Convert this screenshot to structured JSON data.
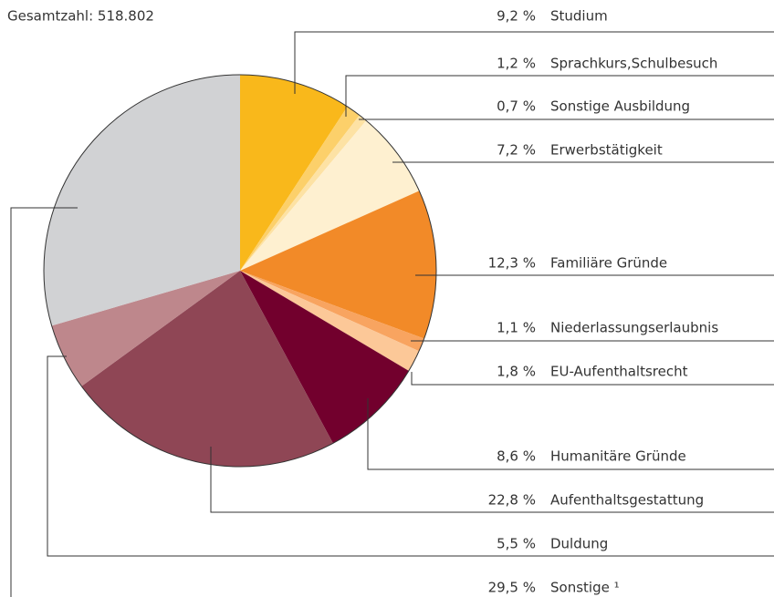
{
  "chart_data": {
    "type": "pie",
    "title": "Gesamtzahl: 518.802",
    "categories": [
      "Studium",
      "Sprachkurs,Schulbesuch",
      "Sonstige Ausbildung",
      "Erwerbstätigkeit",
      "Familiäre Gründe",
      "Niederlassungserlaubnis",
      "EU-Aufenthaltsrecht",
      "Humanitäre Gründe",
      "Aufenthaltsgestattung",
      "Duldung",
      "Sonstige ¹"
    ],
    "values": [
      9.2,
      1.2,
      0.7,
      7.2,
      12.3,
      1.1,
      1.8,
      8.6,
      22.8,
      5.5,
      29.5
    ],
    "value_labels": [
      "9,2 %",
      "1,2 %",
      "0,7 %",
      "7,2 %",
      "12,3 %",
      "1,1 %",
      "1,8 %",
      "8,6 %",
      "22,8 %",
      "5,5 %",
      "29,5 %"
    ],
    "colors": [
      "#f9b81b",
      "#fcd06a",
      "#fde2a4",
      "#fef0d0",
      "#f28a28",
      "#f8a460",
      "#fcc898",
      "#72002d",
      "#8f4655",
      "#be878c",
      "#d1d2d4"
    ]
  }
}
